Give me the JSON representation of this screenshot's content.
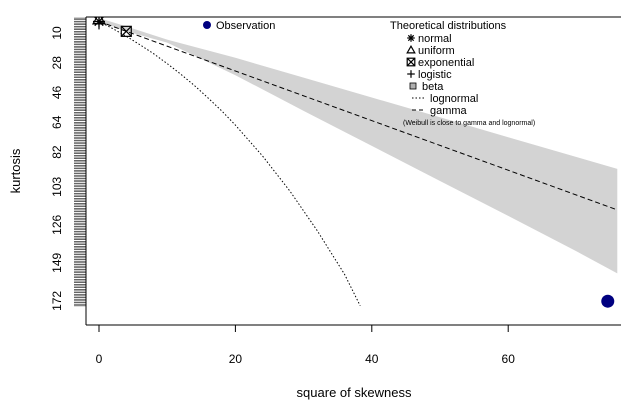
{
  "chart_data": {
    "type": "scatter",
    "title": "",
    "xlabel": "square of skewness",
    "ylabel": "kurtosis",
    "xlim": [
      0,
      76
    ],
    "ylim": [
      175,
      1
    ],
    "x_ticks": [
      0,
      20,
      40,
      60
    ],
    "y_ticks": [
      10,
      28,
      46,
      64,
      82,
      103,
      126,
      149,
      172
    ],
    "observation": {
      "name": "Observation",
      "x": 74.6,
      "y": 172.2,
      "color": "#000080"
    },
    "theoretical_points": [
      {
        "name": "normal",
        "x": 0,
        "y": 3,
        "symbol": "asterisk"
      },
      {
        "name": "uniform",
        "x": 0,
        "y": 1.8,
        "symbol": "triangle"
      },
      {
        "name": "exponential",
        "x": 4,
        "y": 9,
        "symbol": "boxed-x"
      },
      {
        "name": "logistic",
        "x": 0,
        "y": 4.2,
        "symbol": "plus"
      }
    ],
    "beta_region": {
      "upper": [
        [
          0,
          1
        ],
        [
          4,
          6
        ],
        [
          10,
          14
        ],
        [
          20,
          25
        ],
        [
          30,
          37
        ],
        [
          40,
          49
        ],
        [
          50,
          61
        ],
        [
          60,
          73
        ],
        [
          70,
          85
        ],
        [
          76,
          92.2
        ]
      ],
      "lower": [
        [
          76,
          155.4
        ],
        [
          70,
          142
        ],
        [
          60,
          120.6
        ],
        [
          50,
          99.5
        ],
        [
          40,
          78.3
        ],
        [
          30,
          57.1
        ],
        [
          20,
          35.5
        ],
        [
          10,
          15.8
        ],
        [
          4,
          9
        ],
        [
          0,
          3
        ]
      ],
      "color": "#d3d3d3"
    },
    "lognormal_curve": [
      [
        0,
        3
      ],
      [
        2,
        7.3
      ],
      [
        4,
        12
      ],
      [
        6,
        17.1
      ],
      [
        8,
        22.5
      ],
      [
        10,
        28.5
      ],
      [
        12,
        34.9
      ],
      [
        14,
        41.8
      ],
      [
        16,
        49.3
      ],
      [
        18,
        57.2
      ],
      [
        20,
        65.7
      ],
      [
        24,
        84.5
      ],
      [
        28,
        105.7
      ],
      [
        32,
        129.5
      ],
      [
        36,
        155.9
      ],
      [
        38.3,
        175
      ]
    ],
    "gamma_line": [
      [
        0,
        3
      ],
      [
        76,
        117
      ]
    ],
    "legend": {
      "observation_label": "Observation",
      "title": "Theoretical distributions",
      "items": [
        "normal",
        "uniform",
        "exponential",
        "logistic",
        "beta",
        "lognormal",
        "gamma"
      ],
      "note": "(Weibull is close to gamma and lognormal)",
      "placement": "top-right"
    },
    "grid": false
  }
}
